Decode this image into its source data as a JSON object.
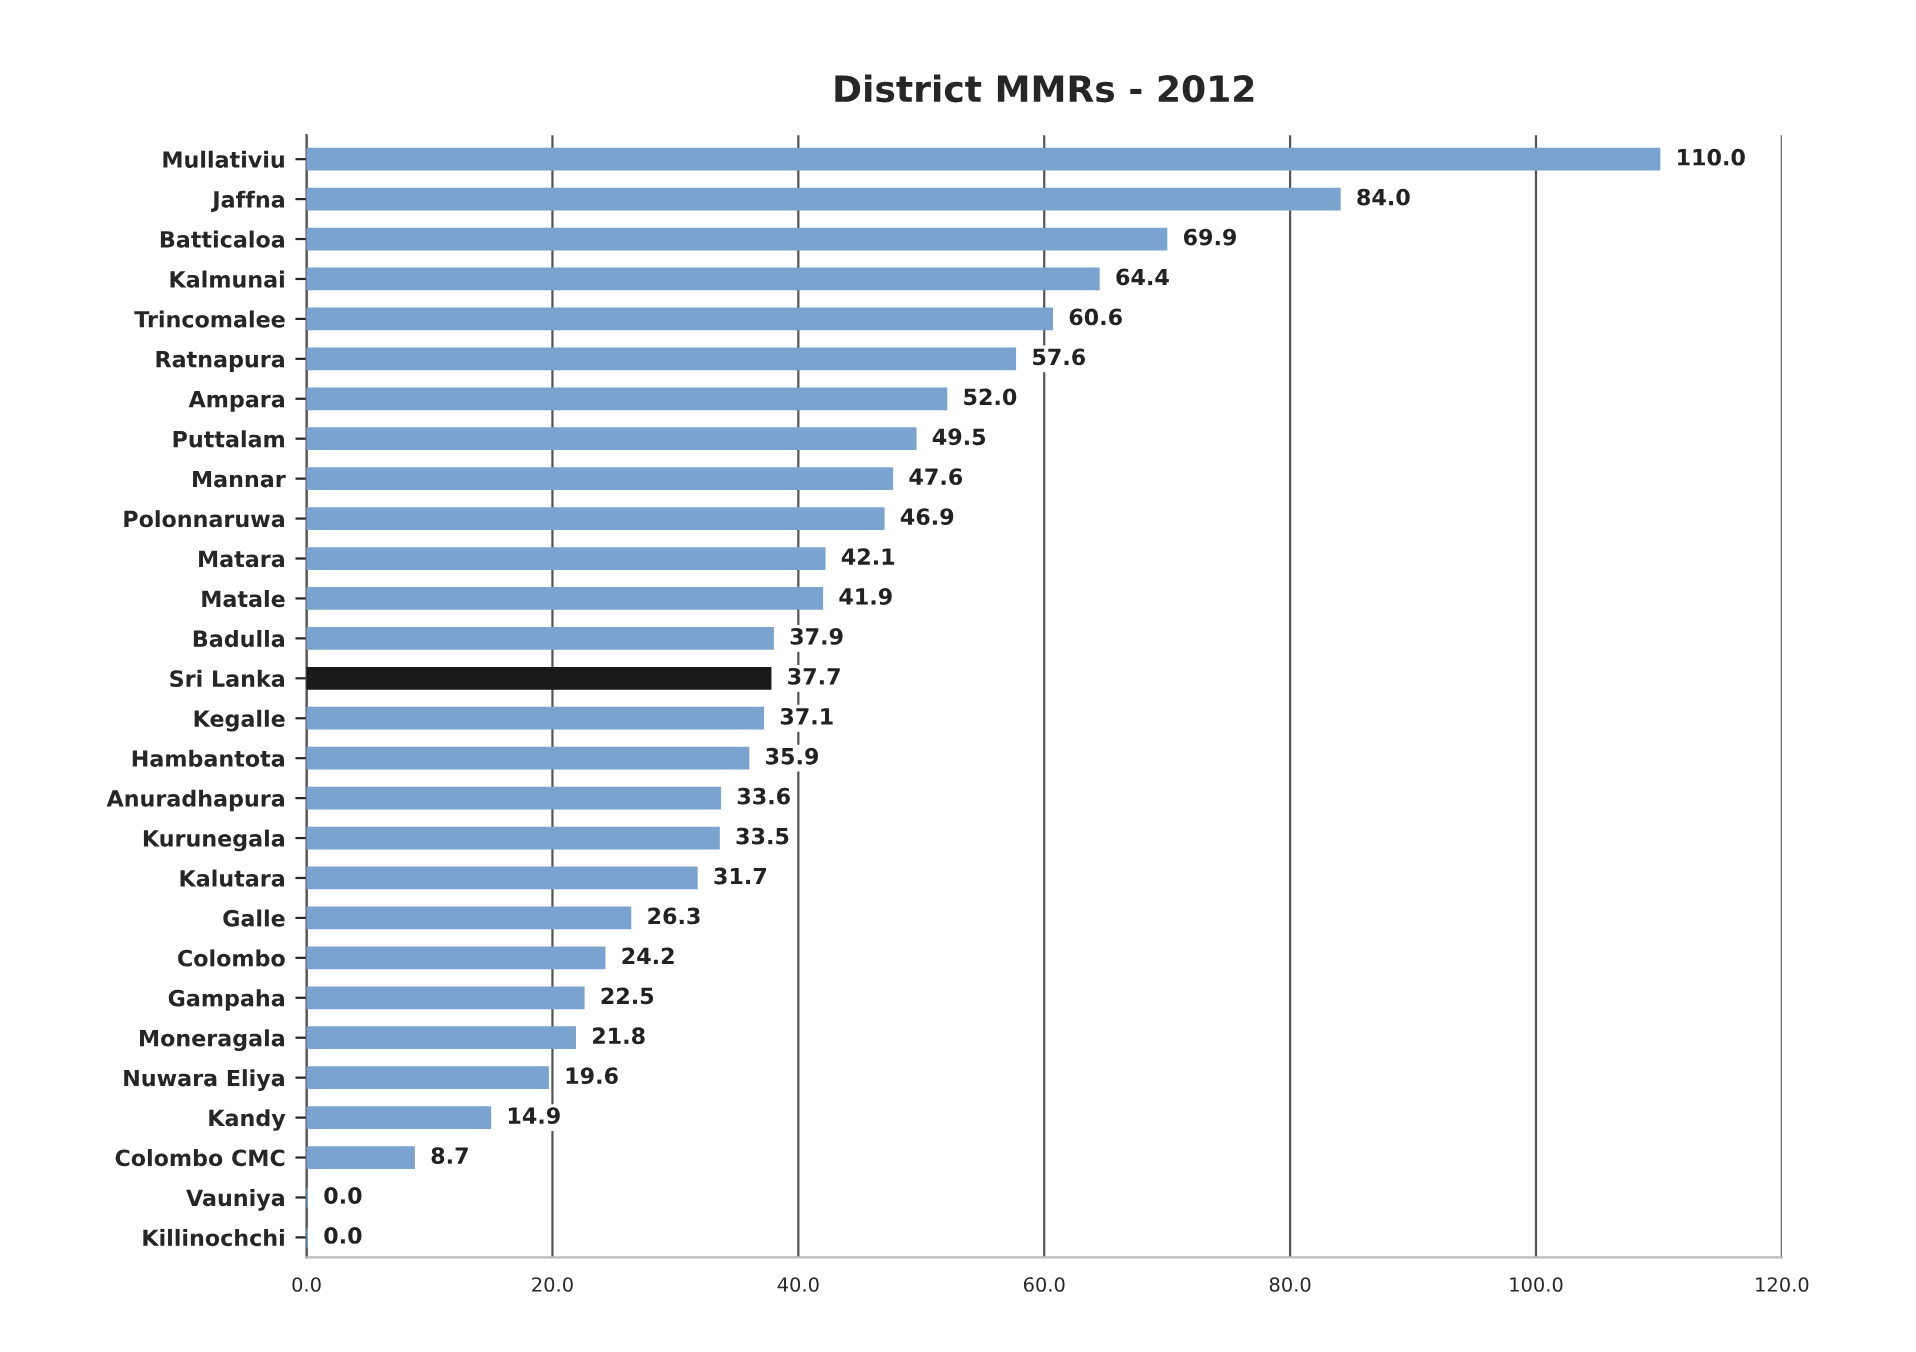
{
  "chart_data": {
    "type": "bar",
    "orientation": "horizontal",
    "title": "District MMRs - 2012",
    "categories": [
      "Mullativiu",
      "Jaffna",
      "Batticaloa",
      "Kalmunai",
      "Trincomalee",
      "Ratnapura",
      "Ampara",
      "Puttalam",
      "Mannar",
      "Polonnaruwa",
      "Matara",
      "Matale",
      "Badulla",
      "Sri Lanka",
      "Kegalle",
      "Hambantota",
      "Anuradhapura",
      "Kurunegala",
      "Kalutara",
      "Galle",
      "Colombo",
      "Gampaha",
      "Moneragala",
      "Nuwara Eliya",
      "Kandy",
      "Colombo CMC",
      "Vauniya",
      "Killinochchi"
    ],
    "values": [
      110.0,
      84.0,
      69.9,
      64.4,
      60.6,
      57.6,
      52.0,
      49.5,
      47.6,
      46.9,
      42.1,
      41.9,
      37.9,
      37.7,
      37.1,
      35.9,
      33.6,
      33.5,
      31.7,
      26.3,
      24.2,
      22.5,
      21.8,
      19.6,
      14.9,
      8.7,
      0.0,
      0.0
    ],
    "value_labels": [
      "110.0",
      "84.0",
      "69.9",
      "64.4",
      "60.6",
      "57.6",
      "52.0",
      "49.5",
      "47.6",
      "46.9",
      "42.1",
      "41.9",
      "37.9",
      "37.7",
      "37.1",
      "35.9",
      "33.6",
      "33.5",
      "31.7",
      "26.3",
      "24.2",
      "22.5",
      "21.8",
      "19.6",
      "14.9",
      "8.7",
      "0.0",
      "0.0"
    ],
    "colors": [
      "#7ba3cf",
      "#7ba3cf",
      "#7ba3cf",
      "#7ba3cf",
      "#7ba3cf",
      "#7ba3cf",
      "#7ba3cf",
      "#7ba3cf",
      "#7ba3cf",
      "#7ba3cf",
      "#7ba3cf",
      "#7ba3cf",
      "#7ba3cf",
      "#1a1a1a",
      "#7ba3cf",
      "#7ba3cf",
      "#7ba3cf",
      "#7ba3cf",
      "#7ba3cf",
      "#7ba3cf",
      "#7ba3cf",
      "#7ba3cf",
      "#7ba3cf",
      "#7ba3cf",
      "#7ba3cf",
      "#7ba3cf",
      "#7ba3cf",
      "#7ba3cf"
    ],
    "xlim": [
      0,
      120
    ],
    "xticks": [
      {
        "value": 0,
        "label": "0.0"
      },
      {
        "value": 20,
        "label": "20.0"
      },
      {
        "value": 40,
        "label": "40.0"
      },
      {
        "value": 60,
        "label": "60.0"
      },
      {
        "value": 80,
        "label": "80.0"
      },
      {
        "value": 100,
        "label": "100.0"
      },
      {
        "value": 120,
        "label": "120.0"
      }
    ],
    "grid": "x"
  }
}
